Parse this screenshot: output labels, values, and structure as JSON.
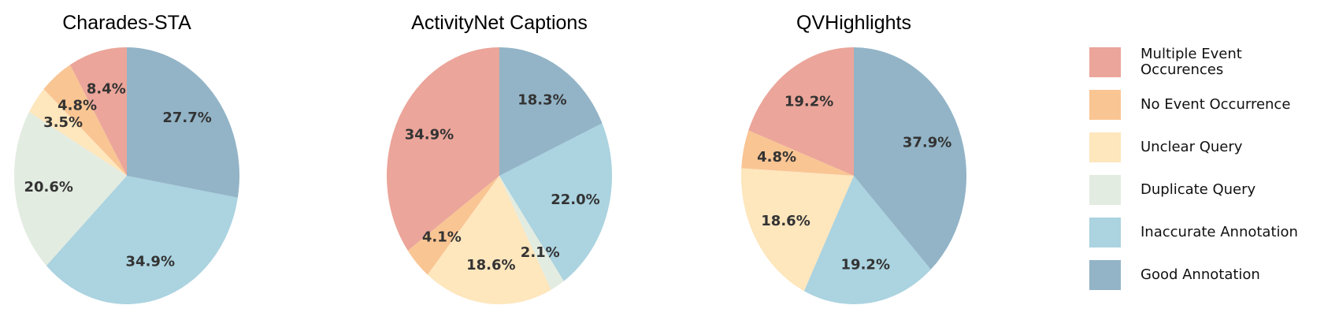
{
  "chart_data": [
    {
      "type": "pie",
      "title": "Charades-STA",
      "categories": [
        "Multiple Event Occurences",
        "No Event Occurrence",
        "Unclear Query",
        "Duplicate Query",
        "Inaccurate Annotation",
        "Good Annotation"
      ],
      "values": [
        8.4,
        4.8,
        3.5,
        20.6,
        34.9,
        27.7
      ],
      "labels": [
        "8.4%",
        "4.8%",
        "3.5%",
        "20.6%",
        "34.9%",
        "27.7%"
      ]
    },
    {
      "type": "pie",
      "title": "ActivityNet Captions",
      "categories": [
        "Multiple Event Occurences",
        "No Event Occurrence",
        "Unclear Query",
        "Duplicate Query",
        "Inaccurate Annotation",
        "Good Annotation"
      ],
      "values": [
        34.9,
        4.1,
        18.6,
        2.1,
        22.0,
        18.3
      ],
      "labels": [
        "34.9%",
        "4.1%",
        "18.6%",
        "2.1%",
        "22.0%",
        "18.3%"
      ]
    },
    {
      "type": "pie",
      "title": "QVHighlights",
      "categories": [
        "Multiple Event Occurences",
        "No Event Occurrence",
        "Unclear Query",
        "Duplicate Query",
        "Inaccurate Annotation",
        "Good Annotation"
      ],
      "values": [
        19.2,
        4.8,
        18.6,
        0,
        19.2,
        37.9
      ],
      "labels": [
        "19.2%",
        "4.8%",
        "18.6%",
        "",
        "19.2%",
        "37.9%"
      ]
    }
  ],
  "legend": {
    "placement": "right",
    "items": [
      {
        "label": "Multiple Event\nOccurences",
        "color": "#eba59a"
      },
      {
        "label": "No Event Occurrence",
        "color": "#f9c593"
      },
      {
        "label": "Unclear Query",
        "color": "#fee6bd"
      },
      {
        "label": "Duplicate Query",
        "color": "#e3ece1"
      },
      {
        "label": "Inaccurate Annotation",
        "color": "#abd3e0"
      },
      {
        "label": "Good Annotation",
        "color": "#93b4c7"
      }
    ]
  }
}
